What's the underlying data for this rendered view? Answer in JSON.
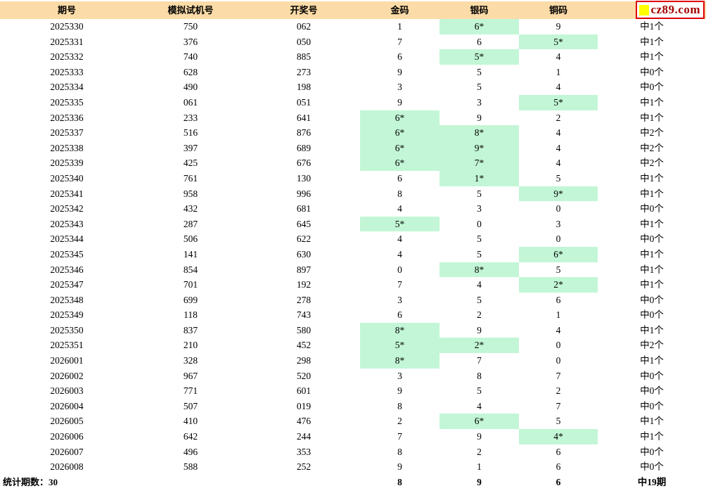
{
  "logo": {
    "text": "cz89.com"
  },
  "colors": {
    "header_bg": "#FBDBA7",
    "highlight": "#C2F6D6",
    "logo_border": "#E00000",
    "logo_text": "#A50000",
    "logo_square": "#FFFF00"
  },
  "table": {
    "columns": [
      {
        "key": "period",
        "label": "期号"
      },
      {
        "key": "sim",
        "label": "模拟试机号"
      },
      {
        "key": "draw",
        "label": "开奖号"
      },
      {
        "key": "gold",
        "label": "金码"
      },
      {
        "key": "silver",
        "label": "银码"
      },
      {
        "key": "copper",
        "label": "铜码"
      },
      {
        "key": "result",
        "label": ""
      }
    ],
    "rows": [
      {
        "period": "2025330",
        "sim": "750",
        "draw": "062",
        "gold": "1",
        "silver": "6*",
        "copper": "9",
        "result": "中1个",
        "highlights": [
          false,
          true,
          false
        ]
      },
      {
        "period": "2025331",
        "sim": "376",
        "draw": "050",
        "gold": "7",
        "silver": "6",
        "copper": "5*",
        "result": "中1个",
        "highlights": [
          false,
          false,
          true
        ]
      },
      {
        "period": "2025332",
        "sim": "740",
        "draw": "885",
        "gold": "6",
        "silver": "5*",
        "copper": "4",
        "result": "中1个",
        "highlights": [
          false,
          true,
          false
        ]
      },
      {
        "period": "2025333",
        "sim": "628",
        "draw": "273",
        "gold": "9",
        "silver": "5",
        "copper": "1",
        "result": "中0个",
        "highlights": [
          false,
          false,
          false
        ]
      },
      {
        "period": "2025334",
        "sim": "490",
        "draw": "198",
        "gold": "3",
        "silver": "5",
        "copper": "4",
        "result": "中0个",
        "highlights": [
          false,
          false,
          false
        ]
      },
      {
        "period": "2025335",
        "sim": "061",
        "draw": "051",
        "gold": "9",
        "silver": "3",
        "copper": "5*",
        "result": "中1个",
        "highlights": [
          false,
          false,
          true
        ]
      },
      {
        "period": "2025336",
        "sim": "233",
        "draw": "641",
        "gold": "6*",
        "silver": "9",
        "copper": "2",
        "result": "中1个",
        "highlights": [
          true,
          false,
          false
        ]
      },
      {
        "period": "2025337",
        "sim": "516",
        "draw": "876",
        "gold": "6*",
        "silver": "8*",
        "copper": "4",
        "result": "中2个",
        "highlights": [
          true,
          true,
          false
        ]
      },
      {
        "period": "2025338",
        "sim": "397",
        "draw": "689",
        "gold": "6*",
        "silver": "9*",
        "copper": "4",
        "result": "中2个",
        "highlights": [
          true,
          true,
          false
        ]
      },
      {
        "period": "2025339",
        "sim": "425",
        "draw": "676",
        "gold": "6*",
        "silver": "7*",
        "copper": "4",
        "result": "中2个",
        "highlights": [
          true,
          true,
          false
        ]
      },
      {
        "period": "2025340",
        "sim": "761",
        "draw": "130",
        "gold": "6",
        "silver": "1*",
        "copper": "5",
        "result": "中1个",
        "highlights": [
          false,
          true,
          false
        ]
      },
      {
        "period": "2025341",
        "sim": "958",
        "draw": "996",
        "gold": "8",
        "silver": "5",
        "copper": "9*",
        "result": "中1个",
        "highlights": [
          false,
          false,
          true
        ]
      },
      {
        "period": "2025342",
        "sim": "432",
        "draw": "681",
        "gold": "4",
        "silver": "3",
        "copper": "0",
        "result": "中0个",
        "highlights": [
          false,
          false,
          false
        ]
      },
      {
        "period": "2025343",
        "sim": "287",
        "draw": "645",
        "gold": "5*",
        "silver": "0",
        "copper": "3",
        "result": "中1个",
        "highlights": [
          true,
          false,
          false
        ]
      },
      {
        "period": "2025344",
        "sim": "506",
        "draw": "622",
        "gold": "4",
        "silver": "5",
        "copper": "0",
        "result": "中0个",
        "highlights": [
          false,
          false,
          false
        ]
      },
      {
        "period": "2025345",
        "sim": "141",
        "draw": "630",
        "gold": "4",
        "silver": "5",
        "copper": "6*",
        "result": "中1个",
        "highlights": [
          false,
          false,
          true
        ]
      },
      {
        "period": "2025346",
        "sim": "854",
        "draw": "897",
        "gold": "0",
        "silver": "8*",
        "copper": "5",
        "result": "中1个",
        "highlights": [
          false,
          true,
          false
        ]
      },
      {
        "period": "2025347",
        "sim": "701",
        "draw": "192",
        "gold": "7",
        "silver": "4",
        "copper": "2*",
        "result": "中1个",
        "highlights": [
          false,
          false,
          true
        ]
      },
      {
        "period": "2025348",
        "sim": "699",
        "draw": "278",
        "gold": "3",
        "silver": "5",
        "copper": "6",
        "result": "中0个",
        "highlights": [
          false,
          false,
          false
        ]
      },
      {
        "period": "2025349",
        "sim": "118",
        "draw": "743",
        "gold": "6",
        "silver": "2",
        "copper": "1",
        "result": "中0个",
        "highlights": [
          false,
          false,
          false
        ]
      },
      {
        "period": "2025350",
        "sim": "837",
        "draw": "580",
        "gold": "8*",
        "silver": "9",
        "copper": "4",
        "result": "中1个",
        "highlights": [
          true,
          false,
          false
        ]
      },
      {
        "period": "2025351",
        "sim": "210",
        "draw": "452",
        "gold": "5*",
        "silver": "2*",
        "copper": "0",
        "result": "中2个",
        "highlights": [
          true,
          true,
          false
        ]
      },
      {
        "period": "2026001",
        "sim": "328",
        "draw": "298",
        "gold": "8*",
        "silver": "7",
        "copper": "0",
        "result": "中1个",
        "highlights": [
          true,
          false,
          false
        ]
      },
      {
        "period": "2026002",
        "sim": "967",
        "draw": "520",
        "gold": "3",
        "silver": "8",
        "copper": "7",
        "result": "中0个",
        "highlights": [
          false,
          false,
          false
        ]
      },
      {
        "period": "2026003",
        "sim": "771",
        "draw": "601",
        "gold": "9",
        "silver": "5",
        "copper": "2",
        "result": "中0个",
        "highlights": [
          false,
          false,
          false
        ]
      },
      {
        "period": "2026004",
        "sim": "507",
        "draw": "019",
        "gold": "8",
        "silver": "4",
        "copper": "7",
        "result": "中0个",
        "highlights": [
          false,
          false,
          false
        ]
      },
      {
        "period": "2026005",
        "sim": "410",
        "draw": "476",
        "gold": "2",
        "silver": "6*",
        "copper": "5",
        "result": "中1个",
        "highlights": [
          false,
          true,
          false
        ]
      },
      {
        "period": "2026006",
        "sim": "642",
        "draw": "244",
        "gold": "7",
        "silver": "9",
        "copper": "4*",
        "result": "中1个",
        "highlights": [
          false,
          false,
          true
        ]
      },
      {
        "period": "2026007",
        "sim": "496",
        "draw": "353",
        "gold": "8",
        "silver": "2",
        "copper": "6",
        "result": "中0个",
        "highlights": [
          false,
          false,
          false
        ]
      },
      {
        "period": "2026008",
        "sim": "588",
        "draw": "252",
        "gold": "9",
        "silver": "1",
        "copper": "6",
        "result": "中0个",
        "highlights": [
          false,
          false,
          false
        ]
      }
    ],
    "footer": {
      "stats_label": "统计期数：30",
      "gold_total": "8",
      "silver_total": "9",
      "copper_total": "6",
      "result_total": "中19期"
    }
  }
}
